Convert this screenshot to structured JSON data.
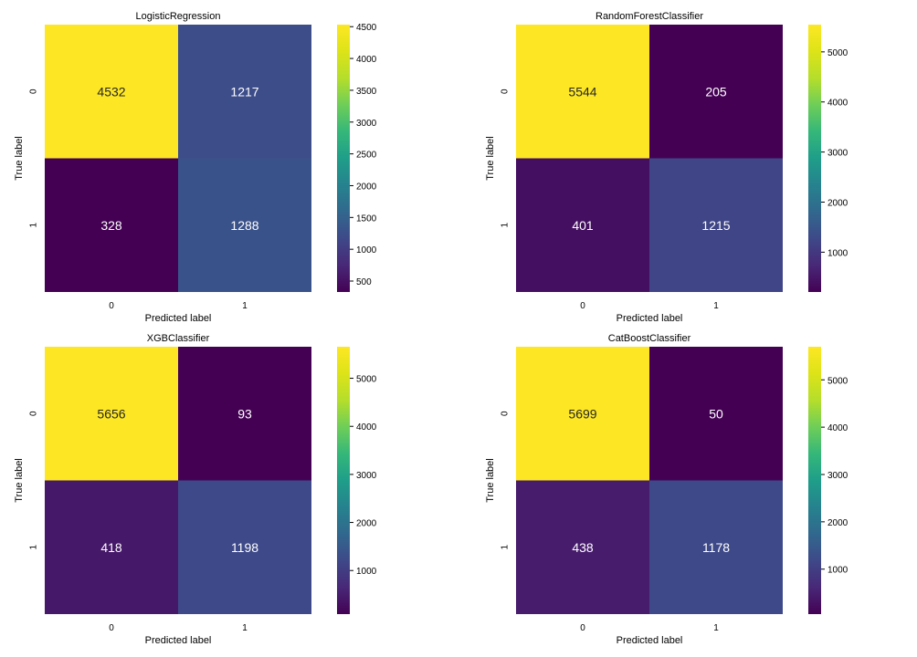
{
  "chart_data": [
    {
      "type": "heatmap",
      "title": "LogisticRegression",
      "xlabel": "Predicted label",
      "ylabel": "True label",
      "x_tick_labels": [
        "0",
        "1"
      ],
      "y_tick_labels": [
        "0",
        "1"
      ],
      "matrix": [
        [
          4532,
          1217
        ],
        [
          328,
          1288
        ]
      ],
      "colormap": "viridis",
      "colorbar": {
        "vmin": 328,
        "vmax": 4532,
        "ticks": [
          500,
          1000,
          1500,
          2000,
          2500,
          3000,
          3500,
          4000,
          4500
        ]
      }
    },
    {
      "type": "heatmap",
      "title": "RandomForestClassifier",
      "xlabel": "Predicted label",
      "ylabel": "True label",
      "x_tick_labels": [
        "0",
        "1"
      ],
      "y_tick_labels": [
        "0",
        "1"
      ],
      "matrix": [
        [
          5544,
          205
        ],
        [
          401,
          1215
        ]
      ],
      "colormap": "viridis",
      "colorbar": {
        "vmin": 205,
        "vmax": 5544,
        "ticks": [
          1000,
          2000,
          3000,
          4000,
          5000
        ]
      }
    },
    {
      "type": "heatmap",
      "title": "XGBClassifier",
      "xlabel": "Predicted label",
      "ylabel": "True label",
      "x_tick_labels": [
        "0",
        "1"
      ],
      "y_tick_labels": [
        "0",
        "1"
      ],
      "matrix": [
        [
          5656,
          93
        ],
        [
          418,
          1198
        ]
      ],
      "colormap": "viridis",
      "colorbar": {
        "vmin": 93,
        "vmax": 5656,
        "ticks": [
          1000,
          2000,
          3000,
          4000,
          5000
        ]
      }
    },
    {
      "type": "heatmap",
      "title": "CatBoostClassifier",
      "xlabel": "Predicted label",
      "ylabel": "True label",
      "x_tick_labels": [
        "0",
        "1"
      ],
      "y_tick_labels": [
        "0",
        "1"
      ],
      "matrix": [
        [
          5699,
          50
        ],
        [
          438,
          1178
        ]
      ],
      "colormap": "viridis",
      "colorbar": {
        "vmin": 50,
        "vmax": 5699,
        "ticks": [
          1000,
          2000,
          3000,
          4000,
          5000
        ]
      }
    }
  ]
}
